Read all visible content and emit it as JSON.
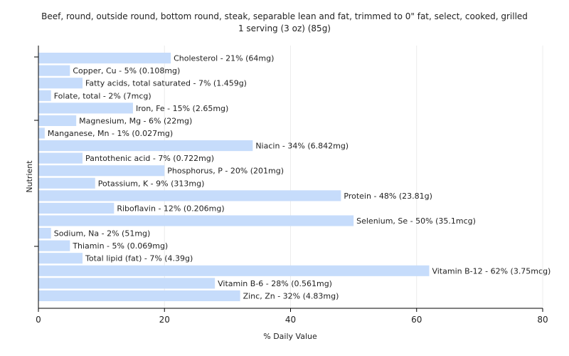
{
  "chart_data": {
    "type": "bar",
    "orientation": "horizontal",
    "title": "Beef, round, outside round, bottom round, steak, separable lean and fat, trimmed to 0\" fat, select, cooked,  grilled",
    "subtitle": "1 serving (3 oz) (85g)",
    "xlabel": "% Daily Value",
    "ylabel": "Nutrient",
    "xlim": [
      0,
      80
    ],
    "xticks": [
      0,
      20,
      40,
      60,
      80
    ],
    "grid": true,
    "bar_color": "#c6dcfb",
    "categories": [
      "Cholesterol",
      "Copper, Cu",
      "Fatty acids, total saturated",
      "Folate, total",
      "Iron, Fe",
      "Magnesium, Mg",
      "Manganese, Mn",
      "Niacin",
      "Pantothenic acid",
      "Phosphorus, P",
      "Potassium, K",
      "Protein",
      "Riboflavin",
      "Selenium, Se",
      "Sodium, Na",
      "Thiamin",
      "Total lipid (fat)",
      "Vitamin B-12",
      "Vitamin B-6",
      "Zinc, Zn"
    ],
    "values": [
      21,
      5,
      7,
      2,
      15,
      6,
      1,
      34,
      7,
      20,
      9,
      48,
      12,
      50,
      2,
      5,
      7,
      62,
      28,
      32
    ],
    "labels": [
      "Cholesterol - 21% (64mg)",
      "Copper, Cu - 5% (0.108mg)",
      "Fatty acids, total saturated - 7% (1.459g)",
      "Folate, total - 2% (7mcg)",
      "Iron, Fe - 15% (2.65mg)",
      "Magnesium, Mg - 6% (22mg)",
      "Manganese, Mn - 1% (0.027mg)",
      "Niacin - 34% (6.842mg)",
      "Pantothenic acid - 7% (0.722mg)",
      "Phosphorus, P - 20% (201mg)",
      "Potassium, K - 9% (313mg)",
      "Protein - 48% (23.81g)",
      "Riboflavin - 12% (0.206mg)",
      "Selenium, Se - 50% (35.1mcg)",
      "Sodium, Na - 2% (51mg)",
      "Thiamin - 5% (0.069mg)",
      "Total lipid (fat) - 7% (4.39g)",
      "Vitamin B-12 - 62% (3.75mcg)",
      "Vitamin B-6 - 28% (0.561mg)",
      "Zinc, Zn - 32% (4.83mg)"
    ]
  }
}
